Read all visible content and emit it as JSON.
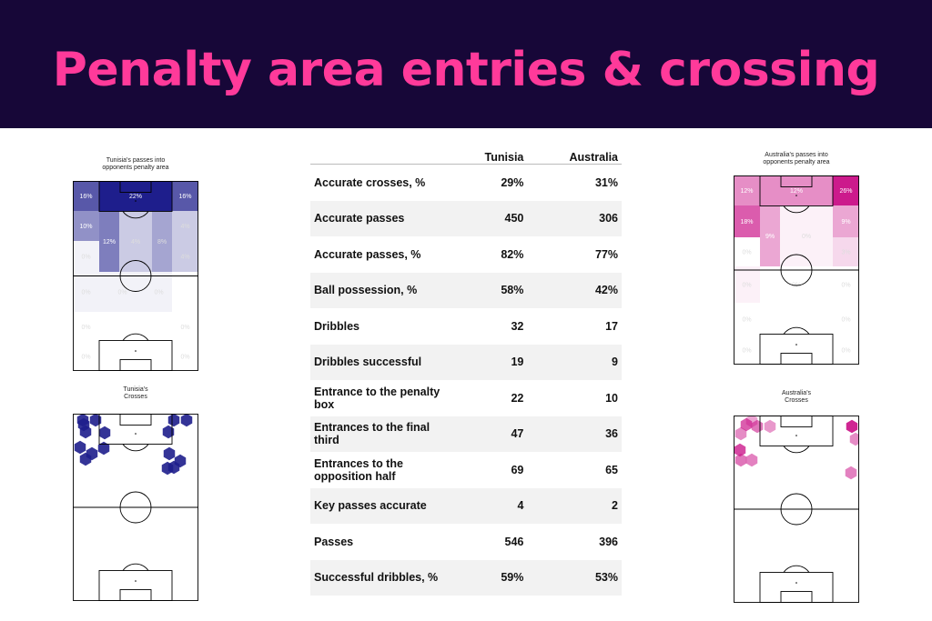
{
  "header": {
    "title": "Penalty area entries & crossing"
  },
  "colors": {
    "banner_bg": "#170738",
    "title": "#ff3a9a",
    "tunisia": "#1e1e8c",
    "australia": "#cc1a8c"
  },
  "pitches": {
    "tunisia_passes": {
      "title": "Tunisia's passes into\nopponents penalty area",
      "cells": [
        {
          "label": "16%",
          "value": 16
        },
        {
          "label": "22%",
          "value": 22
        },
        {
          "label": "16%",
          "value": 16
        },
        {
          "label": "10%",
          "value": 10
        },
        {
          "label": "12%",
          "value": 12
        },
        {
          "label": "4%",
          "value": 4
        },
        {
          "label": "8%",
          "value": 8
        },
        {
          "label": "4%",
          "value": 4
        },
        {
          "label": "0%",
          "value": 0
        },
        {
          "label": "4%",
          "value": 4
        },
        {
          "label": "0%",
          "value": 0
        },
        {
          "label": "0%",
          "value": 0
        },
        {
          "label": "0%",
          "value": 0
        },
        {
          "label": "0%",
          "value": 0
        },
        {
          "label": "0%",
          "value": 0
        },
        {
          "label": "0%",
          "value": 0
        },
        {
          "label": "0%",
          "value": 0
        }
      ]
    },
    "tunisia_crosses": {
      "title": "Tunisia's\nCrosses"
    },
    "australia_passes": {
      "title": "Australia's passes into\nopponents penalty area",
      "cells": [
        {
          "label": "12%",
          "value": 12
        },
        {
          "label": "12%",
          "value": 12
        },
        {
          "label": "26%",
          "value": 26
        },
        {
          "label": "18%",
          "value": 18
        },
        {
          "label": "9%",
          "value": 9
        },
        {
          "label": "9%",
          "value": 9
        },
        {
          "label": "0%",
          "value": 0
        },
        {
          "label": "3%",
          "value": 3
        },
        {
          "label": "0%",
          "value": 0
        },
        {
          "label": "0%",
          "value": 0
        },
        {
          "label": "0%",
          "value": 0
        },
        {
          "label": "0%",
          "value": 0
        },
        {
          "label": "0%",
          "value": 0
        },
        {
          "label": "0%",
          "value": 0
        },
        {
          "label": "0%",
          "value": 0
        },
        {
          "label": "0%",
          "value": 0
        }
      ]
    },
    "australia_crosses": {
      "title": "Australia's\nCrosses"
    }
  },
  "chart_data": {
    "type": "table",
    "columns": [
      "",
      "Tunisia",
      "Australia"
    ],
    "rows": [
      {
        "label": "Accurate crosses, %",
        "tunisia": "29%",
        "australia": "31%"
      },
      {
        "label": "Accurate passes",
        "tunisia": "450",
        "australia": "306"
      },
      {
        "label": "Accurate passes, %",
        "tunisia": "82%",
        "australia": "77%"
      },
      {
        "label": "Ball possession, %",
        "tunisia": "58%",
        "australia": "42%"
      },
      {
        "label": "Dribbles",
        "tunisia": "32",
        "australia": "17"
      },
      {
        "label": "Dribbles successful",
        "tunisia": "19",
        "australia": "9"
      },
      {
        "label": "Entrance to the penalty box",
        "tunisia": "22",
        "australia": "10"
      },
      {
        "label": "Entrances to the final third",
        "tunisia": "47",
        "australia": "36"
      },
      {
        "label": "Entrances to the opposition half",
        "tunisia": "69",
        "australia": "65"
      },
      {
        "label": "Key passes accurate",
        "tunisia": "4",
        "australia": "2"
      },
      {
        "label": "Passes",
        "tunisia": "546",
        "australia": "396"
      },
      {
        "label": "Successful dribbles, %",
        "tunisia": "59%",
        "australia": "53%"
      }
    ]
  }
}
